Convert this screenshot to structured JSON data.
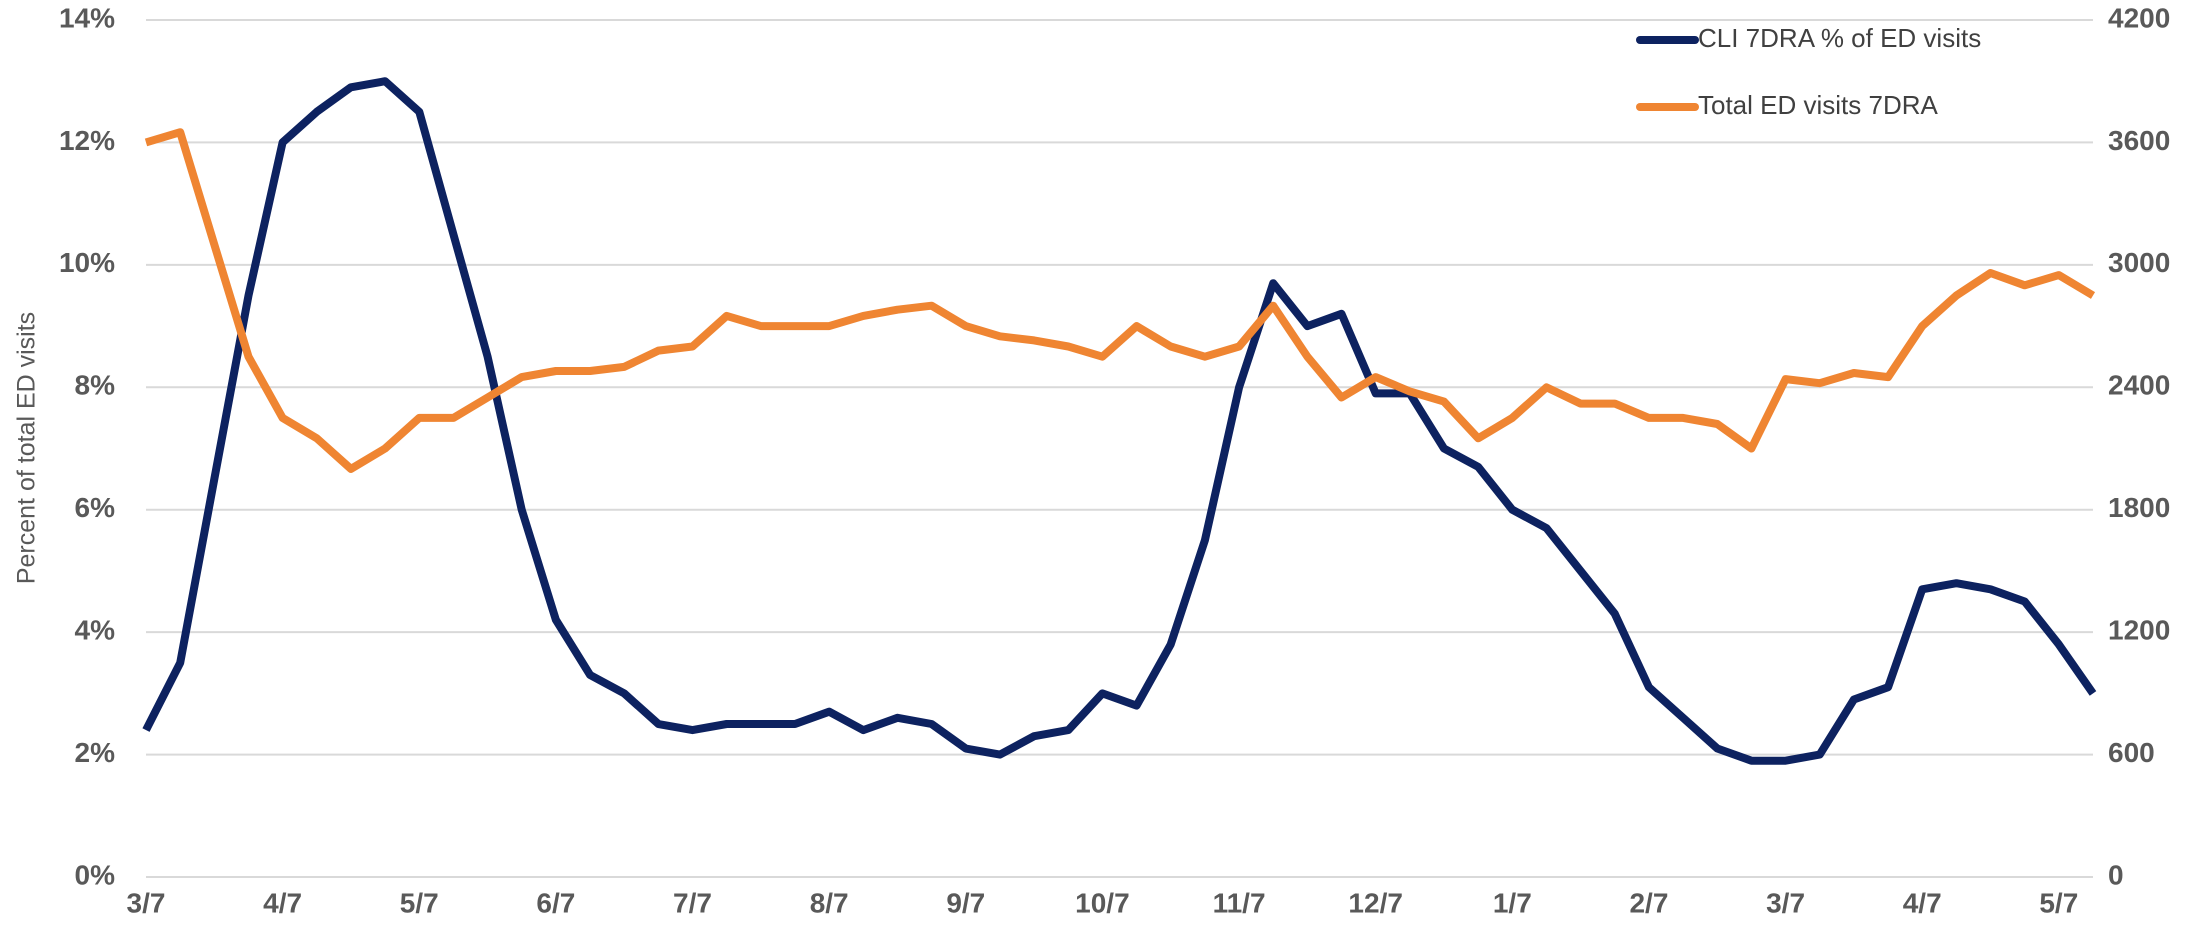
{
  "chart_data": {
    "type": "line",
    "y_label": "Percent of total ED visits",
    "categories": [
      "3/7",
      null,
      null,
      null,
      "4/7",
      null,
      null,
      null,
      "5/7",
      null,
      null,
      null,
      "6/7",
      null,
      null,
      null,
      "7/7",
      null,
      null,
      null,
      "8/7",
      null,
      null,
      null,
      "9/7",
      null,
      null,
      null,
      "10/7",
      null,
      null,
      null,
      "11/7",
      null,
      null,
      null,
      "12/7",
      null,
      null,
      null,
      "1/7",
      null,
      null,
      null,
      "2/7",
      null,
      null,
      null,
      "3/7",
      null,
      null,
      null,
      "4/7",
      null,
      null,
      null,
      "5/7",
      null
    ],
    "series": [
      {
        "name": "CLI 7DRA % of ED visits",
        "color": "#0d2260",
        "axis": "y",
        "values": [
          2.4,
          3.5,
          6.5,
          9.5,
          12.0,
          12.5,
          12.9,
          13.0,
          12.5,
          10.5,
          8.5,
          6.0,
          4.2,
          3.3,
          3.0,
          2.5,
          2.4,
          2.5,
          2.5,
          2.5,
          2.7,
          2.4,
          2.6,
          2.5,
          2.1,
          2.0,
          2.3,
          2.4,
          3.0,
          2.8,
          3.8,
          5.5,
          8.0,
          9.7,
          9.0,
          9.2,
          7.9,
          7.9,
          7.0,
          6.7,
          6.0,
          5.7,
          5.0,
          4.3,
          3.1,
          2.6,
          2.1,
          1.9,
          1.9,
          2.0,
          2.9,
          3.1,
          4.7,
          4.8,
          4.7,
          4.5,
          3.8,
          3.0
        ]
      },
      {
        "name": "Total ED visits 7DRA",
        "color": "#ef8532",
        "axis": "y2",
        "values": [
          3600,
          3650,
          3100,
          2550,
          2250,
          2150,
          2000,
          2100,
          2250,
          2250,
          2350,
          2450,
          2480,
          2480,
          2500,
          2580,
          2600,
          2750,
          2700,
          2700,
          2700,
          2750,
          2780,
          2800,
          2700,
          2650,
          2630,
          2600,
          2550,
          2700,
          2600,
          2550,
          2600,
          2800,
          2550,
          2350,
          2450,
          2380,
          2330,
          2150,
          2250,
          2400,
          2320,
          2320,
          2250,
          2250,
          2220,
          2100,
          2440,
          2420,
          2470,
          2450,
          2700,
          2850,
          2960,
          2900,
          2950,
          2850
        ]
      }
    ],
    "ylim": [
      0,
      14
    ],
    "yticks": [
      {
        "value": 0,
        "label": "0%"
      },
      {
        "value": 2,
        "label": "2%"
      },
      {
        "value": 4,
        "label": "4%"
      },
      {
        "value": 6,
        "label": "6%"
      },
      {
        "value": 8,
        "label": "8%"
      },
      {
        "value": 10,
        "label": "10%"
      },
      {
        "value": 12,
        "label": "12%"
      },
      {
        "value": 14,
        "label": "14%"
      }
    ],
    "y2lim": [
      0,
      4200
    ],
    "y2ticks": [
      0,
      600,
      1200,
      1800,
      2400,
      3000,
      3600,
      4200
    ],
    "grid": true,
    "legend": "upper right"
  }
}
